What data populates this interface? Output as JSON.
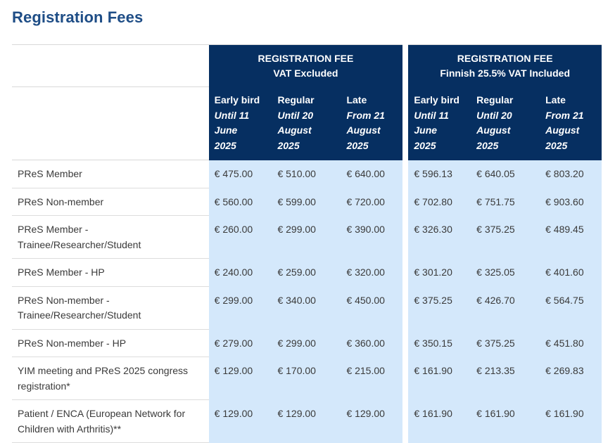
{
  "title": "Registration Fees",
  "groups": [
    {
      "title": "REGISTRATION FEE",
      "subtitle": "VAT Excluded"
    },
    {
      "title": "REGISTRATION FEE",
      "subtitle": "Finnish 25.5% VAT Included"
    }
  ],
  "columns": [
    {
      "name": "Early bird",
      "period_a": "Until 11",
      "period_b": "June",
      "period_c": "2025"
    },
    {
      "name": "Regular",
      "period_a": "Until 20",
      "period_b": "August",
      "period_c": "2025"
    },
    {
      "name": "Late",
      "period_a": "From 21",
      "period_b": "August",
      "period_c": "2025"
    }
  ],
  "rows": [
    {
      "label": "PReS Member",
      "excl": [
        "€ 475.00",
        "€ 510.00",
        "€ 640.00"
      ],
      "incl": [
        "€ 596.13",
        "€ 640.05",
        "€ 803.20"
      ]
    },
    {
      "label": "PReS Non-member",
      "excl": [
        "€ 560.00",
        "€ 599.00",
        "€ 720.00"
      ],
      "incl": [
        "€ 702.80",
        "€ 751.75",
        "€ 903.60"
      ]
    },
    {
      "label": "PReS Member - Trainee/Researcher/Student",
      "excl": [
        "€ 260.00",
        "€ 299.00",
        "€ 390.00"
      ],
      "incl": [
        "€ 326.30",
        "€ 375.25",
        "€ 489.45"
      ]
    },
    {
      "label": "PReS Member - HP",
      "excl": [
        "€ 240.00",
        "€ 259.00",
        "€ 320.00"
      ],
      "incl": [
        "€ 301.20",
        "€ 325.05",
        "€ 401.60"
      ]
    },
    {
      "label": "PReS Non-member - Trainee/Researcher/Student",
      "excl": [
        "€ 299.00",
        "€ 340.00",
        "€ 450.00"
      ],
      "incl": [
        "€ 375.25",
        "€ 426.70",
        "€ 564.75"
      ]
    },
    {
      "label": "PReS Non-member - HP",
      "excl": [
        "€ 279.00",
        "€ 299.00",
        "€ 360.00"
      ],
      "incl": [
        "€ 350.15",
        "€ 375.25",
        "€ 451.80"
      ]
    },
    {
      "label": "YIM meeting and PReS 2025 congress registration*",
      "excl": [
        "€ 129.00",
        "€ 170.00",
        "€ 215.00"
      ],
      "incl": [
        "€ 161.90",
        "€ 213.35",
        "€ 269.83"
      ]
    },
    {
      "label": "Patient / ENCA (European Network for Children with Arthritis)**",
      "excl": [
        "€ 129.00",
        "€ 129.00",
        "€ 129.00"
      ],
      "incl": [
        "€ 161.90",
        "€ 161.90",
        "€ 161.90"
      ]
    }
  ]
}
